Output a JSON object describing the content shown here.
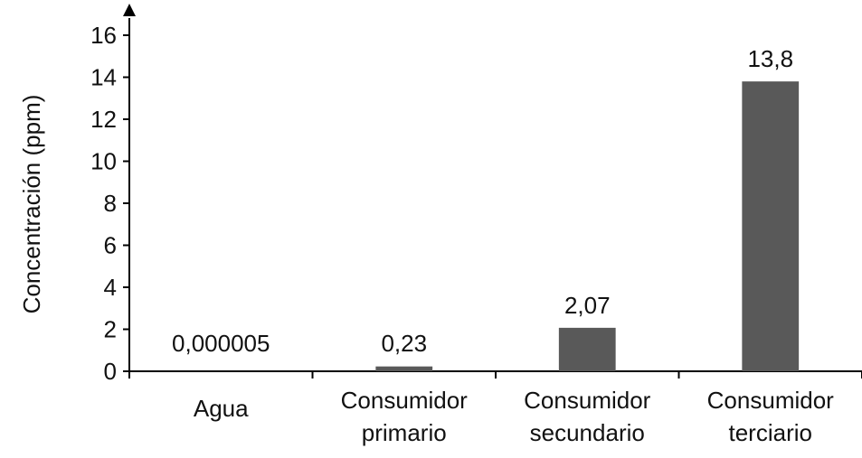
{
  "chart_data": {
    "type": "bar",
    "categories": [
      [
        "Agua"
      ],
      [
        "Consumidor",
        "primario"
      ],
      [
        "Consumidor",
        "secundario"
      ],
      [
        "Consumidor",
        "terciario"
      ]
    ],
    "values": [
      5e-06,
      0.23,
      2.07,
      13.8
    ],
    "data_labels": [
      "0,000005",
      "0,23",
      "2,07",
      "13,8"
    ],
    "ylabel": "Concentración (ppm)",
    "xlabel": "",
    "title": "",
    "ylim": [
      0,
      16
    ],
    "y_ticks": [
      0,
      2,
      4,
      6,
      8,
      10,
      12,
      14,
      16
    ],
    "grid": false,
    "legend": "none",
    "bar_color": "#595959",
    "axis_color": "#000000"
  }
}
